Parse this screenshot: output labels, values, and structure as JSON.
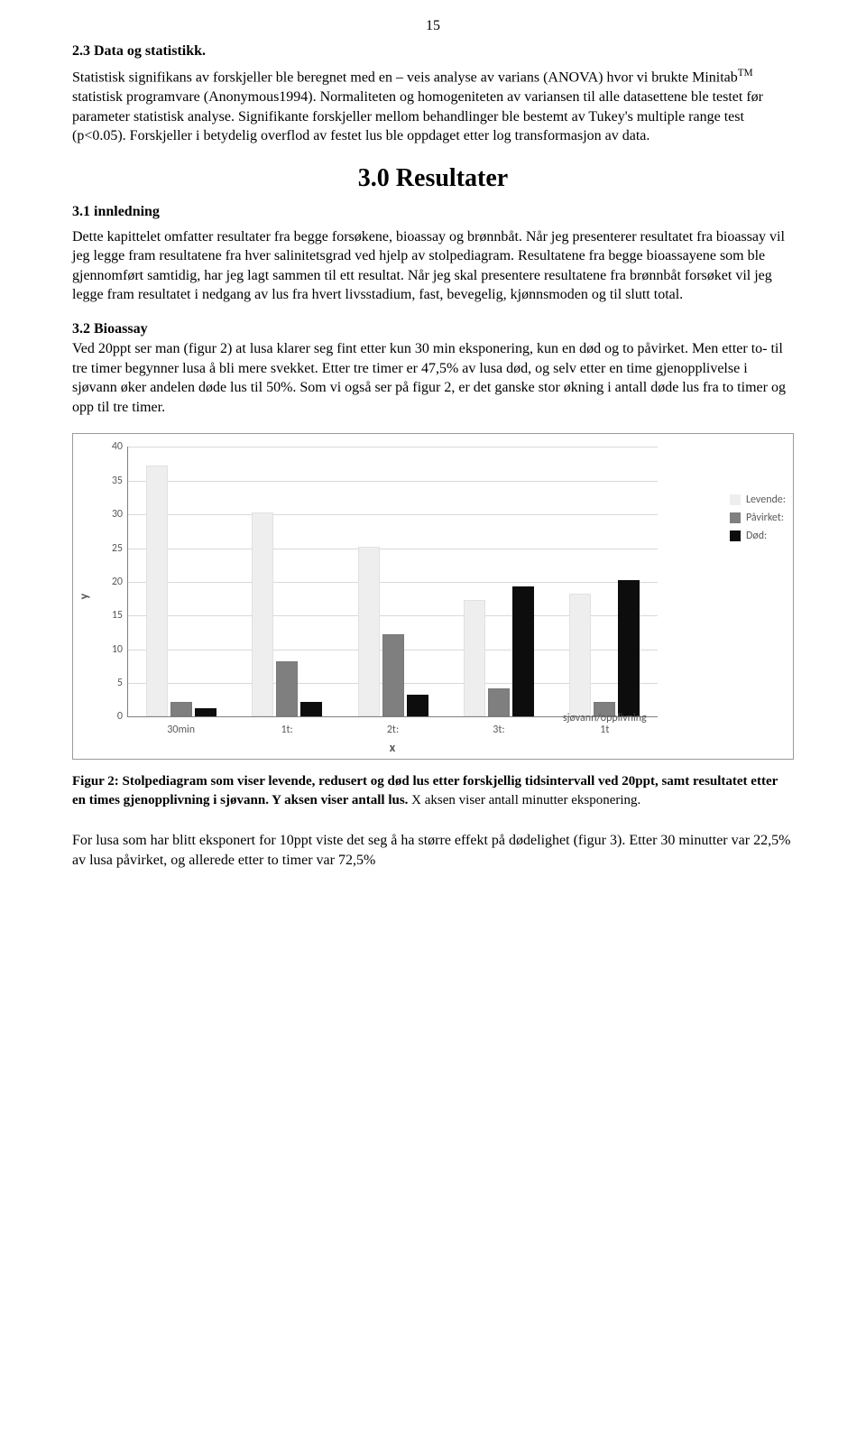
{
  "page_number": "15",
  "section23": {
    "heading": "2.3 Data og statistikk.",
    "body_prefix": "Statistisk signifikans av forskjeller ble beregnet med en – veis analyse av varians (ANOVA) hvor vi brukte Minitab",
    "tm": "TM",
    "body_suffix": " statistisk programvare (Anonymous1994). Normaliteten og homogeniteten av variansen til alle datasettene ble testet før parameter statistisk analyse. Signifikante forskjeller mellom behandlinger ble bestemt av Tukey's multiple range test (p<0.05). Forskjeller i betydelig overflod av festet lus ble oppdaget etter log transformasjon av data."
  },
  "resultater": {
    "heading": "3.0 Resultater",
    "sub31_heading": "3.1 innledning",
    "sub31_body": "Dette kapittelet omfatter resultater fra begge forsøkene, bioassay og brønnbåt. Når jeg presenterer resultatet fra bioassay vil jeg legge fram resultatene fra hver salinitetsgrad ved hjelp av stolpediagram. Resultatene fra begge bioassayene som ble gjennomført samtidig, har jeg lagt sammen til ett resultat. Når jeg skal presentere resultatene fra brønnbåt forsøket vil jeg legge fram resultatet i nedgang av lus fra hvert livsstadium, fast, bevegelig, kjønnsmoden og til slutt total."
  },
  "bioassay": {
    "heading": "3.2 Bioassay",
    "body": "Ved 20ppt ser man (figur 2) at lusa klarer seg fint etter kun 30 min eksponering, kun en død og to påvirket. Men etter to- til tre timer begynner lusa å bli mere svekket. Etter tre timer er 47,5% av lusa død, og selv etter en time gjenopplivelse i sjøvann øker andelen døde lus til 50%. Som vi også ser på figur 2, er det ganske stor økning i antall døde lus fra to timer og opp til tre timer."
  },
  "chart": {
    "type": "bar",
    "ymax": 40,
    "ytick_step": 5,
    "ylabel": "y",
    "xlabel": "x",
    "categories": [
      "30min",
      "1t:",
      "2t:",
      "3t:",
      "sjøvann/opplivning\n1t"
    ],
    "series": [
      {
        "label": "Levende:",
        "color": "#eeeeee",
        "values": [
          37,
          30,
          25,
          17,
          18
        ]
      },
      {
        "label": "Påvirket:",
        "color": "#7f7f7f",
        "values": [
          2,
          8,
          12,
          4,
          2
        ]
      },
      {
        "label": "Død:",
        "color": "#0d0d0d",
        "values": [
          1,
          2,
          3,
          19,
          20
        ]
      }
    ],
    "grid_color": "#d9d9d9",
    "axis_color": "#808080",
    "label_color": "#595959"
  },
  "caption": {
    "lead": "Figur 2: Stolpediagram som viser levende, redusert og død lus etter forskjellig tidsintervall ved 20ppt, samt resultatet etter en times gjenopplivning i sjøvann. Y aksen viser antall lus. ",
    "tail": "X aksen viser antall minutter eksponering."
  },
  "footer_text": "For lusa som har blitt eksponert for 10ppt viste det seg å ha større effekt på dødelighet (figur 3). Etter 30 minutter var 22,5% av lusa påvirket, og allerede etter to timer var 72,5%"
}
